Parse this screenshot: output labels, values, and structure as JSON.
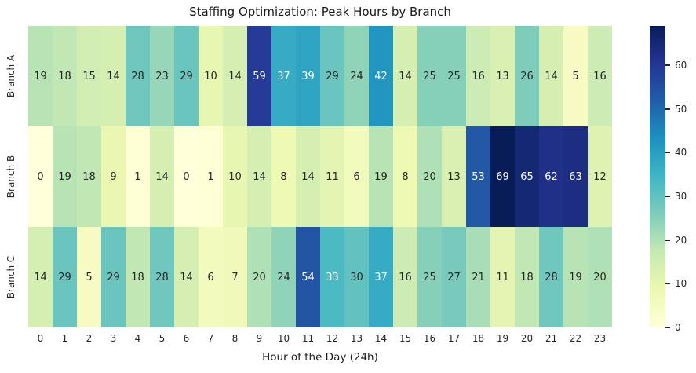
{
  "chart_data": {
    "type": "heatmap",
    "title": "Staffing Optimization: Peak Hours by Branch",
    "xlabel": "Hour of the Day (24h)",
    "ylabel": "",
    "rows": [
      "Branch A",
      "Branch B",
      "Branch C"
    ],
    "columns": [
      "0",
      "1",
      "2",
      "3",
      "4",
      "5",
      "6",
      "7",
      "8",
      "9",
      "10",
      "11",
      "12",
      "13",
      "14",
      "15",
      "16",
      "17",
      "18",
      "19",
      "20",
      "21",
      "22",
      "23"
    ],
    "values": [
      [
        19,
        18,
        15,
        14,
        28,
        23,
        29,
        10,
        14,
        59,
        37,
        39,
        29,
        24,
        42,
        14,
        25,
        25,
        16,
        13,
        26,
        14,
        5,
        16
      ],
      [
        0,
        19,
        18,
        9,
        1,
        14,
        0,
        1,
        10,
        14,
        8,
        14,
        11,
        6,
        19,
        8,
        20,
        13,
        53,
        69,
        65,
        62,
        63,
        12
      ],
      [
        14,
        29,
        5,
        29,
        18,
        28,
        14,
        6,
        7,
        20,
        24,
        54,
        33,
        30,
        37,
        16,
        25,
        27,
        21,
        11,
        18,
        28,
        19,
        20
      ]
    ],
    "vmin": 0,
    "vmax": 69,
    "colormap": {
      "name": "YlGnBu",
      "stops": [
        "#ffffd9",
        "#edf8b1",
        "#c7e9b4",
        "#7fcdbb",
        "#41b6c4",
        "#1d91c0",
        "#225ea8",
        "#253494",
        "#081d58"
      ]
    },
    "colorbar_ticks": [
      0,
      10,
      20,
      30,
      40,
      50,
      60
    ],
    "annotation_colors": {
      "dark_text": "#262626",
      "light_text": "#ffffff"
    },
    "legend_position": "right",
    "grid": false
  }
}
